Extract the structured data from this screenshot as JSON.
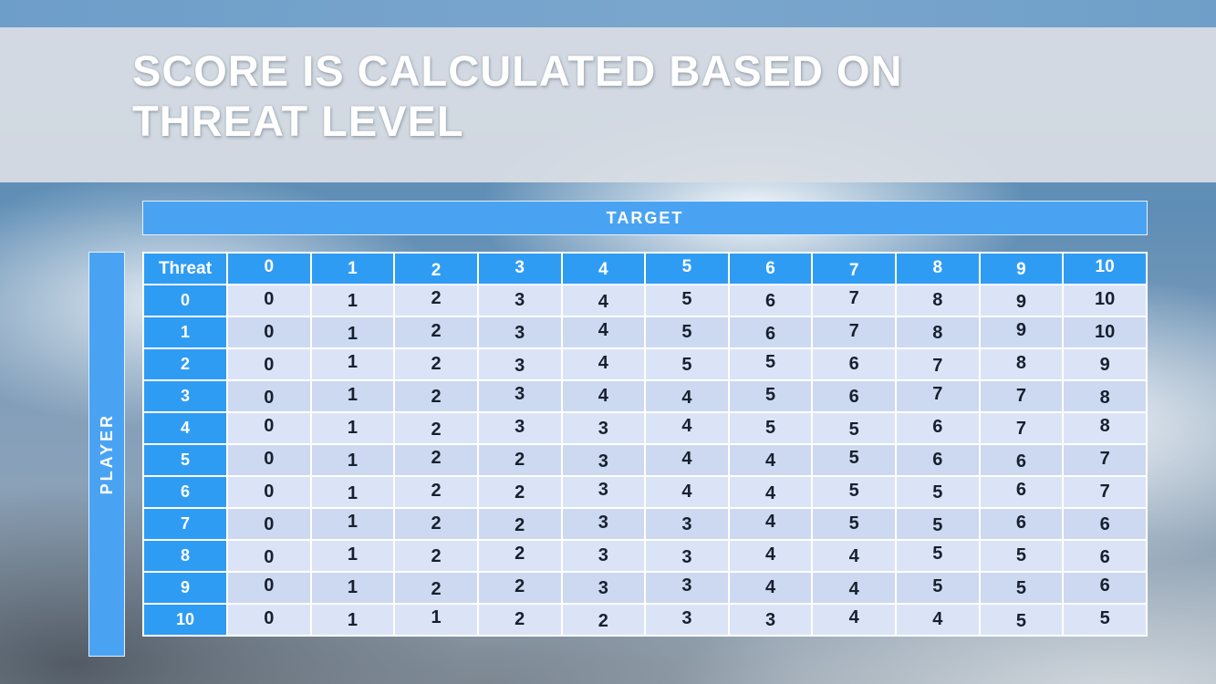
{
  "header": {
    "title_line1": "SCORE IS CALCULATED BASED ON",
    "title_line2": "THREAT LEVEL"
  },
  "matrix": {
    "target_label": "TARGET",
    "player_label": "PLAYER",
    "corner_label": "Threat",
    "column_headers": [
      "0",
      "1",
      "2",
      "3",
      "4",
      "5",
      "6",
      "7",
      "8",
      "9",
      "10"
    ],
    "row_headers": [
      "0",
      "1",
      "2",
      "3",
      "4",
      "5",
      "6",
      "7",
      "8",
      "9",
      "10"
    ],
    "rows": [
      [
        0,
        1,
        2,
        3,
        4,
        5,
        6,
        7,
        8,
        9,
        10
      ],
      [
        0,
        1,
        2,
        3,
        4,
        5,
        6,
        7,
        8,
        9,
        10
      ],
      [
        0,
        1,
        2,
        3,
        4,
        5,
        5,
        6,
        7,
        8,
        9
      ],
      [
        0,
        1,
        2,
        3,
        4,
        4,
        5,
        6,
        7,
        7,
        8
      ],
      [
        0,
        1,
        2,
        3,
        3,
        4,
        5,
        5,
        6,
        7,
        8
      ],
      [
        0,
        1,
        2,
        2,
        3,
        4,
        4,
        5,
        6,
        6,
        7
      ],
      [
        0,
        1,
        2,
        2,
        3,
        4,
        4,
        5,
        5,
        6,
        7
      ],
      [
        0,
        1,
        2,
        2,
        3,
        3,
        4,
        5,
        5,
        6,
        6
      ],
      [
        0,
        1,
        2,
        2,
        3,
        3,
        4,
        4,
        5,
        5,
        6
      ],
      [
        0,
        1,
        2,
        2,
        3,
        3,
        4,
        4,
        5,
        5,
        6
      ],
      [
        0,
        1,
        1,
        2,
        2,
        3,
        3,
        4,
        4,
        5,
        5
      ]
    ]
  },
  "colors": {
    "top_strip_blue": "#6d9ec9",
    "banner_gray": "#d9dee4",
    "bar_blue": "#4aa3f2",
    "header_blue": "#2f9cf4",
    "cell_light": "#dbe4f7",
    "cell_dark": "#cdd9f1",
    "cell_text": "#16202e",
    "title_text": "#ffffff"
  }
}
